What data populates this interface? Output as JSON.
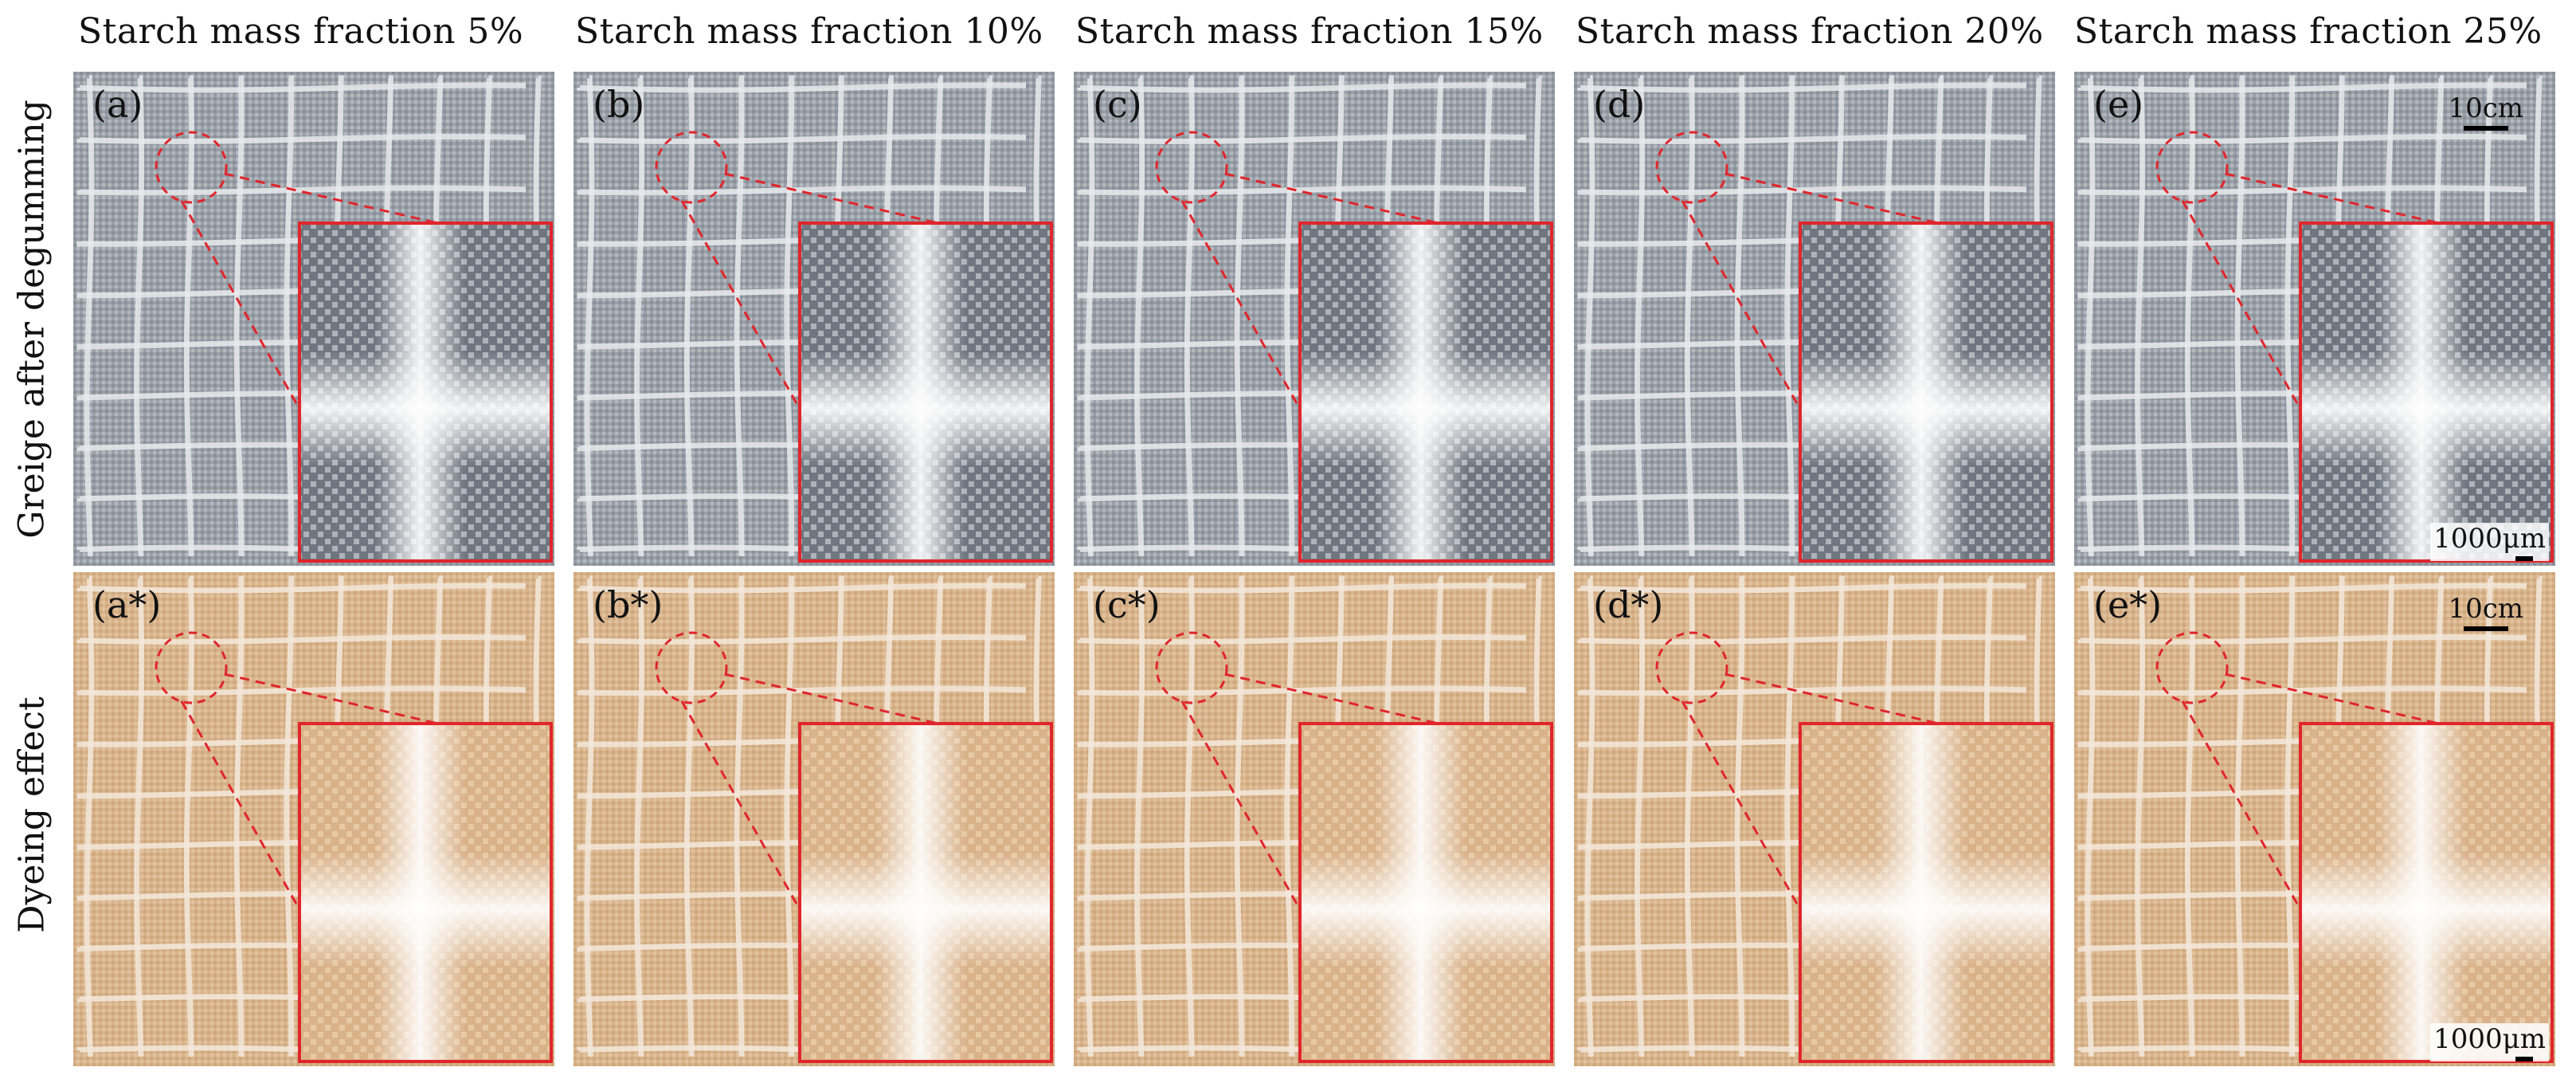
{
  "columns": [
    {
      "header": "Starch mass fraction 5%"
    },
    {
      "header": "Starch mass fraction 10%"
    },
    {
      "header": "Starch mass fraction 15%"
    },
    {
      "header": "Starch mass fraction 20%"
    },
    {
      "header": "Starch mass fraction 25%"
    }
  ],
  "rows": [
    {
      "label": "Greige after degumming",
      "panels": [
        "(a)",
        "(b)",
        "(c)",
        "(d)",
        "(e)"
      ]
    },
    {
      "label": "Dyeing effect",
      "panels": [
        "(a*)",
        "(b*)",
        "(c*)",
        "(d*)",
        "(e*)"
      ]
    }
  ],
  "scale_bars": {
    "fabric": "10cm",
    "inset": "1000μm"
  },
  "colors": {
    "greige_base": "#9aa0a8",
    "greige_line": "#e8eaec",
    "dyed_base": "#d8b48c",
    "dyed_line": "#f3e8da",
    "highlight": "#e0252b"
  }
}
